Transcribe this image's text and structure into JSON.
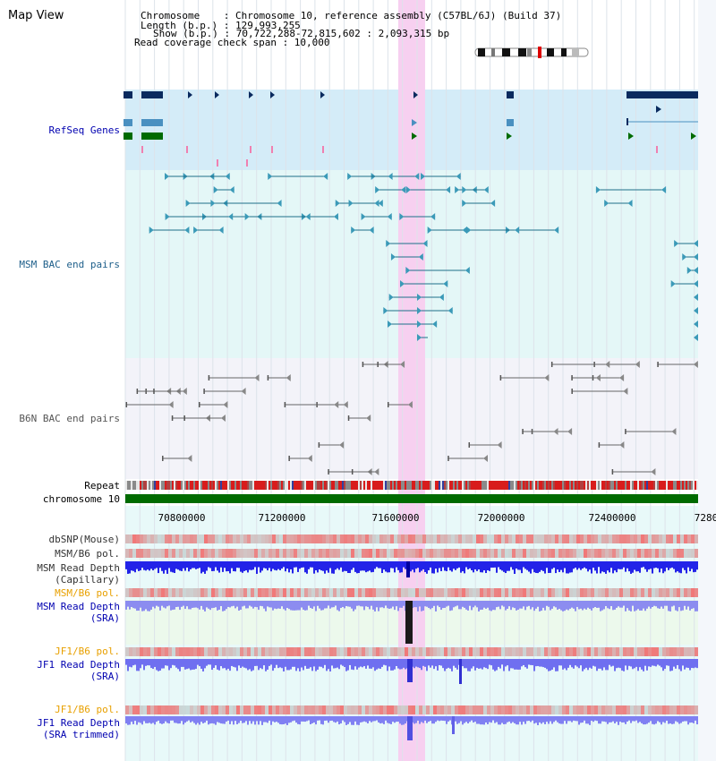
{
  "header": {
    "title": "Map View",
    "info_lines": [
      "Chromosome    : Chromosome 10, reference assembly (C57BL/6J) (Build 37)",
      "Length (b.p.) : 129,993,255",
      "Show (b.p.) : 70,722,288-72,815,602 : 2,093,315 bp",
      "Read coverage check span : 10,000"
    ]
  },
  "tracks": {
    "refseq": "RefSeq Genes",
    "msm_bac": "MSM BAC end pairs",
    "b6n_bac": "B6N BAC end pairs",
    "repeat": "Repeat",
    "chromosome": "chromosome 10",
    "dbsnp": "dbSNP(Mouse)",
    "msm_b6_pol_1": "MSM/B6 pol.",
    "msm_read_depth_cap_1": "MSM Read Depth",
    "msm_read_depth_cap_2": "(Capillary)",
    "msm_b6_pol_2": "MSM/B6 pol.",
    "msm_read_depth_sra_1": "MSM Read Depth",
    "msm_read_depth_sra_2": "(SRA)",
    "jf1_b6_pol_1": "JF1/B6 pol.",
    "jf1_read_depth_sra_1": "JF1 Read Depth",
    "jf1_read_depth_sra_2": "(SRA)",
    "jf1_b6_pol_2": "JF1/B6 pol.",
    "jf1_read_depth_trim_1": "JF1 Read Depth",
    "jf1_read_depth_trim_2": "(SRA trimmed)"
  },
  "axis": {
    "ticks": [
      "70800000",
      "71200000",
      "71600000",
      "72000000",
      "72400000",
      "7280"
    ]
  },
  "colors": {
    "label_black": "#000000",
    "label_blue": "#0000b0",
    "label_teal": "#1e5f8a",
    "label_orange": "#e8a000",
    "highlight": "#f7d0f0",
    "refseq_bg": "#d4ecf8",
    "msm_bac_bg": "#e4f7f7",
    "b6n_bac_bg": "#f3f3f9",
    "chromosome_bar": "#006b00",
    "depth_blue": "#2020ee",
    "depth_light": "#7b7bf0"
  }
}
